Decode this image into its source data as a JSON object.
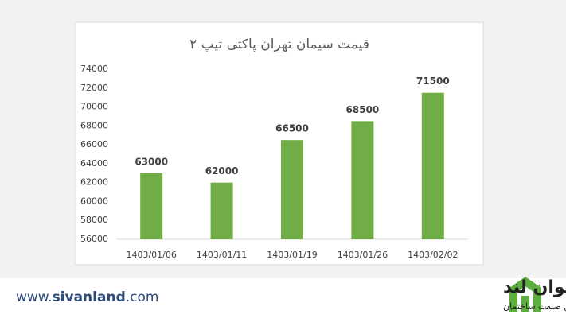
{
  "chart_data": {
    "type": "bar",
    "title": "قیمت سیمان تهران پاکتی تیپ ۲",
    "categories": [
      "1403/01/06",
      "1403/01/11",
      "1403/01/19",
      "1403/01/26",
      "1403/02/02"
    ],
    "values": [
      63000,
      62000,
      66500,
      68500,
      71500
    ],
    "color": "#70ad47",
    "ylim": [
      56000,
      74000
    ],
    "yticks": [
      56000,
      58000,
      60000,
      62000,
      64000,
      66000,
      68000,
      70000,
      72000,
      74000
    ],
    "grid": false
  },
  "footer": {
    "url_prefix": "www.",
    "url_name": "sivanland",
    "url_suffix": ".com",
    "logo_name": "سیوان لند",
    "logo_tagline": "بازار آنلاین صنعت ساختمان"
  }
}
